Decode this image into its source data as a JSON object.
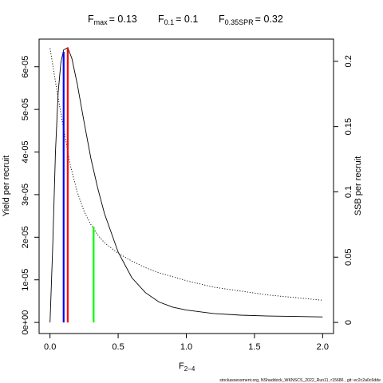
{
  "chart_data": {
    "type": "line",
    "title": {
      "fmax": {
        "base": "F",
        "sub": "max",
        "value": "= 0.13"
      },
      "f01": {
        "base": "F",
        "sub": "0.1",
        "value": "= 0.1"
      },
      "f035spr": {
        "base": "F",
        "sub": "0.35SPR",
        "value": "= 0.32"
      }
    },
    "xlabel": {
      "base": "F",
      "sub": "2−4"
    },
    "ylabel_left": "Yield per recruit",
    "ylabel_right": "SSB per recruit",
    "xlim": [
      -0.08,
      2.08
    ],
    "ylim_left": [
      -2.6e-06,
      6.65e-05
    ],
    "ylim_right": [
      -0.0085,
      0.217
    ],
    "x_ticks": [
      "0.0",
      "0.5",
      "1.0",
      "1.5",
      "2.0"
    ],
    "x_tick_values": [
      0,
      0.5,
      1.0,
      1.5,
      2.0
    ],
    "y_left_ticks": [
      "0e+00",
      "1e-05",
      "2e-05",
      "3e-05",
      "4e-05",
      "5e-05",
      "6e-05"
    ],
    "y_left_tick_values": [
      0,
      1e-05,
      2e-05,
      3e-05,
      4e-05,
      5e-05,
      6e-05
    ],
    "y_right_ticks": [
      "0",
      "0.05",
      "0.1",
      "0.15",
      "0.2"
    ],
    "y_right_tick_values": [
      0,
      0.05,
      0.1,
      0.15,
      0.2
    ],
    "series": [
      {
        "style": "solid",
        "axis": "left",
        "x": [
          0,
          0.02,
          0.04,
          0.06,
          0.08,
          0.1,
          0.13,
          0.16,
          0.2,
          0.25,
          0.3,
          0.35,
          0.4,
          0.5,
          0.6,
          0.7,
          0.8,
          0.9,
          1.0,
          1.2,
          1.4,
          1.6,
          1.8,
          2.0
        ],
        "y": [
          0.0,
          1.8e-05,
          4e-05,
          5.4e-05,
          6.1e-05,
          6.4e-05,
          6.45e-05,
          6.2e-05,
          5.6e-05,
          4.7e-05,
          3.85e-05,
          3.15e-05,
          2.55e-05,
          1.65e-05,
          1.05e-05,
          7e-06,
          4.8e-06,
          3.6e-06,
          2.9e-06,
          2.1e-06,
          1.7e-06,
          1.5e-06,
          1.4e-06,
          1.3e-06
        ]
      },
      {
        "style": "dotted",
        "axis": "right",
        "x": [
          0,
          0.05,
          0.1,
          0.15,
          0.2,
          0.25,
          0.3,
          0.35,
          0.4,
          0.5,
          0.6,
          0.7,
          0.8,
          1.0,
          1.2,
          1.4,
          1.6,
          1.8,
          2.0
        ],
        "y": [
          0.21,
          0.178,
          0.148,
          0.12,
          0.1,
          0.085,
          0.075,
          0.067,
          0.061,
          0.053,
          0.047,
          0.042,
          0.038,
          0.032,
          0.027,
          0.024,
          0.021,
          0.019,
          0.017
        ]
      }
    ],
    "vlines": [
      {
        "name": "F0.1",
        "x": 0.1,
        "y": 6.35e-05,
        "color": "#0000ff"
      },
      {
        "name": "Fmax",
        "x": 0.13,
        "y": 6.45e-05,
        "color": "#ff0000"
      },
      {
        "name": "F0.35SPR",
        "x": 0.32,
        "y": 2.25e-05,
        "color": "#00ff00"
      }
    ],
    "footer": "stockassessment.org, NShaddock_WKNSCS_2022_Run11, r15686 , git: ec2c2a0c6dde"
  }
}
